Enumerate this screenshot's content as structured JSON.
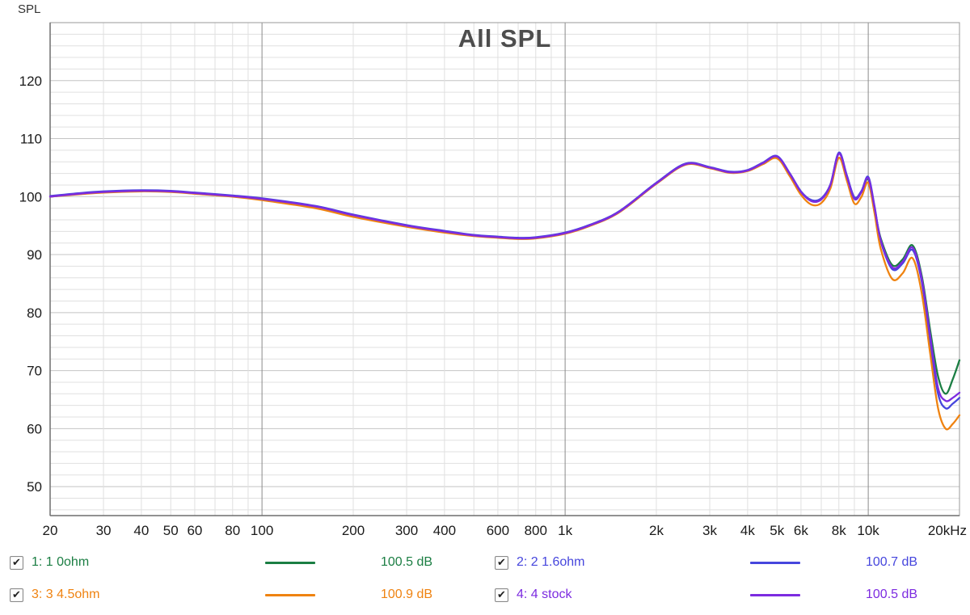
{
  "chart_data": {
    "type": "line",
    "title": "All SPL",
    "x_axis": {
      "scale": "log",
      "min": 20,
      "max": 20000,
      "tick_values": [
        20,
        30,
        40,
        50,
        60,
        80,
        100,
        200,
        300,
        400,
        600,
        800,
        1000,
        2000,
        3000,
        4000,
        5000,
        6000,
        8000,
        10000,
        20000
      ],
      "tick_labels": [
        "20",
        "30",
        "40",
        "50",
        "60",
        "80",
        "100",
        "200",
        "300",
        "400",
        "600",
        "800",
        "1k",
        "2k",
        "3k",
        "4k",
        "5k",
        "6k",
        "8k",
        "10k",
        "20kHz"
      ]
    },
    "y_axis": {
      "label": "SPL",
      "min": 45,
      "max": 130,
      "major_step": 10,
      "minor_step": 2,
      "tick_values": [
        50,
        60,
        70,
        80,
        90,
        100,
        110,
        120
      ]
    },
    "grid": {
      "minor_color": "#e0e0e0",
      "major_h_color": "#c4c4c4",
      "major_v_color": "#8a8a8a",
      "border_color": "#9a9a9a"
    },
    "frequencies": [
      20,
      25,
      30,
      40,
      50,
      60,
      80,
      100,
      150,
      200,
      300,
      400,
      500,
      600,
      700,
      800,
      1000,
      1200,
      1500,
      2000,
      2500,
      3000,
      3500,
      4000,
      4500,
      5000,
      5500,
      6000,
      6500,
      7000,
      7500,
      8000,
      8500,
      9000,
      9500,
      10000,
      10500,
      11000,
      12000,
      13000,
      14000,
      15000,
      16000,
      17000,
      18000,
      19000,
      20000
    ],
    "series": [
      {
        "name": "1: 1 0ohm",
        "value_label": "100.5 dB",
        "color": "#1b7e43",
        "checked": true,
        "values": [
          100.0,
          100.5,
          100.8,
          101.0,
          100.9,
          100.6,
          100.1,
          99.6,
          98.3,
          96.8,
          95.0,
          94.0,
          93.3,
          93.0,
          92.8,
          92.9,
          93.7,
          95.0,
          97.3,
          102.3,
          105.6,
          105.0,
          104.2,
          104.5,
          105.8,
          106.9,
          104.0,
          100.8,
          99.3,
          99.6,
          102.0,
          107.5,
          103.6,
          99.8,
          100.9,
          103.0,
          97.8,
          92.8,
          88.2,
          89.2,
          91.6,
          86.5,
          77.0,
          69.0,
          66.0,
          68.5,
          71.8
        ]
      },
      {
        "name": "2: 2 1.6ohm",
        "value_label": "100.7 dB",
        "color": "#4646dd",
        "checked": true,
        "values": [
          100.1,
          100.6,
          100.9,
          101.1,
          101.0,
          100.7,
          100.2,
          99.7,
          98.4,
          96.9,
          95.1,
          94.1,
          93.4,
          93.1,
          92.9,
          93.0,
          93.8,
          95.1,
          97.4,
          102.4,
          105.7,
          105.1,
          104.3,
          104.6,
          105.9,
          107.0,
          104.1,
          100.9,
          99.4,
          99.7,
          102.1,
          107.6,
          103.7,
          99.9,
          101.0,
          103.4,
          98.2,
          92.3,
          87.5,
          88.5,
          90.8,
          85.5,
          75.0,
          66.0,
          63.5,
          64.3,
          65.3
        ]
      },
      {
        "name": "3: 3 4.5ohm",
        "value_label": "100.9 dB",
        "color": "#ef8311",
        "checked": true,
        "values": [
          100.0,
          100.4,
          100.7,
          100.9,
          100.8,
          100.5,
          100.0,
          99.4,
          98.0,
          96.5,
          94.8,
          93.8,
          93.2,
          92.9,
          92.7,
          92.8,
          93.6,
          94.9,
          97.2,
          102.2,
          105.5,
          104.9,
          104.1,
          104.4,
          105.6,
          106.6,
          103.6,
          100.3,
          98.6,
          98.9,
          101.4,
          106.7,
          102.8,
          98.8,
          100.0,
          102.4,
          97.0,
          91.0,
          85.8,
          86.8,
          89.4,
          83.5,
          73.0,
          63.5,
          60.0,
          60.8,
          62.3
        ]
      },
      {
        "name": "4: 4 stock",
        "value_label": "100.5 dB",
        "color": "#7c2be0",
        "checked": true,
        "values": [
          100.0,
          100.5,
          100.8,
          101.0,
          100.9,
          100.6,
          100.1,
          99.6,
          98.3,
          96.8,
          95.0,
          94.0,
          93.3,
          93.0,
          92.8,
          92.9,
          93.7,
          95.0,
          97.3,
          102.3,
          105.6,
          105.0,
          104.2,
          104.5,
          105.8,
          106.9,
          104.0,
          100.8,
          99.2,
          99.5,
          102.0,
          107.4,
          103.5,
          99.6,
          100.8,
          103.2,
          98.0,
          92.5,
          87.8,
          88.8,
          91.2,
          86.0,
          76.0,
          67.0,
          64.8,
          65.3,
          66.2
        ]
      }
    ],
    "legend": {
      "checkbox_glyph": "✔"
    }
  }
}
